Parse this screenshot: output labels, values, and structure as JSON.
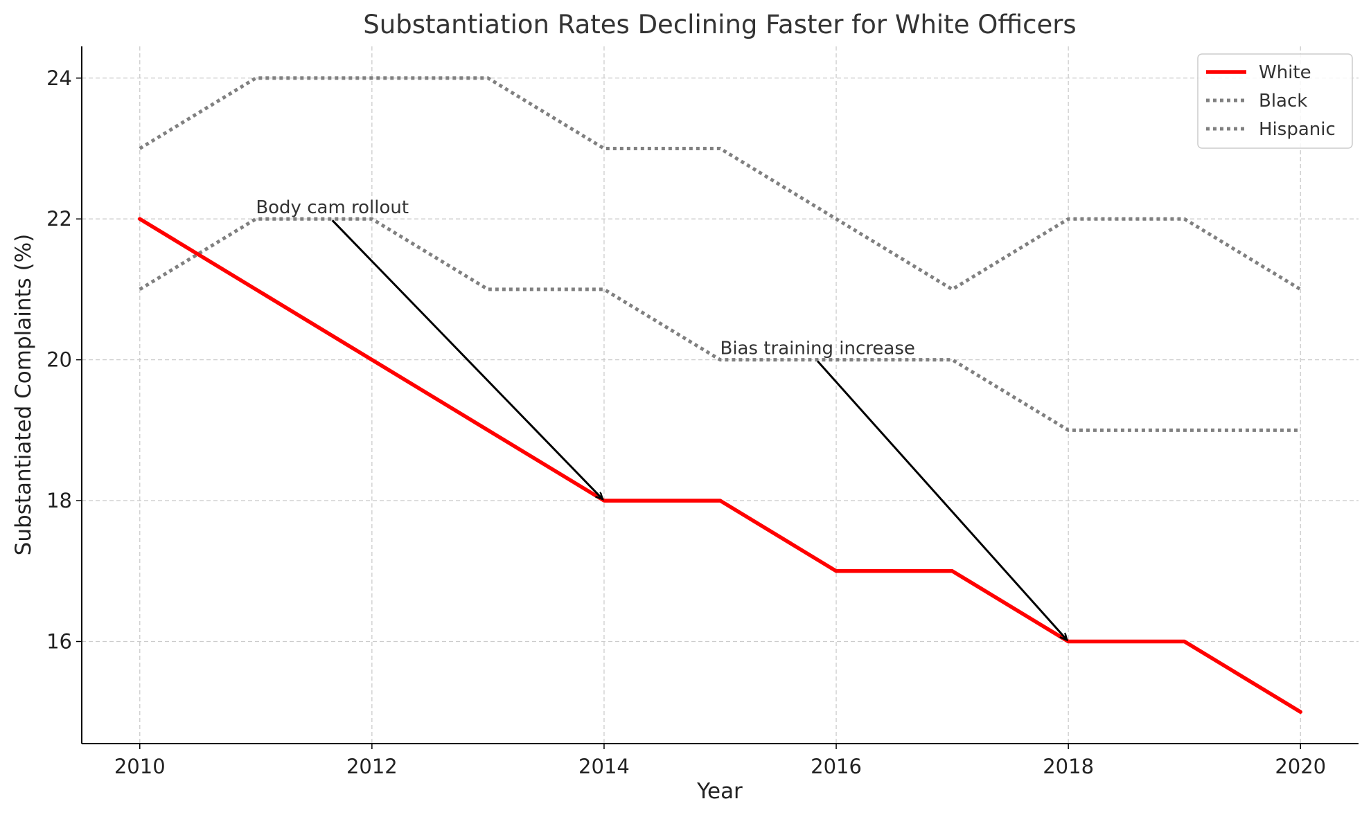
{
  "chart_data": {
    "type": "line",
    "title": "Substantiation Rates Declining Faster for White Officers",
    "xlabel": "Year",
    "ylabel": "Substantiated Complaints (%)",
    "x": [
      2010,
      2011,
      2012,
      2013,
      2014,
      2015,
      2016,
      2017,
      2018,
      2019,
      2020
    ],
    "xlim": [
      2009.5,
      2020.5
    ],
    "ylim": [
      14.55,
      24.45
    ],
    "xticks": [
      "2010",
      "2012",
      "2014",
      "2016",
      "2018",
      "2020"
    ],
    "yticks": [
      "16",
      "18",
      "20",
      "22",
      "24"
    ],
    "grid": true,
    "legend_position": "top-right",
    "series": [
      {
        "name": "White",
        "values": [
          22,
          21,
          20,
          19,
          18,
          18,
          17,
          17,
          16,
          16,
          15
        ],
        "color": "#ff0000",
        "style": "solid"
      },
      {
        "name": "Black",
        "values": [
          23,
          24,
          24,
          24,
          23,
          23,
          22,
          21,
          22,
          22,
          21
        ],
        "color": "#808080",
        "style": "dotted"
      },
      {
        "name": "Hispanic",
        "values": [
          21,
          22,
          22,
          21,
          21,
          20,
          20,
          20,
          19,
          19,
          19
        ],
        "color": "#808080",
        "style": "dotted"
      }
    ],
    "annotations": [
      {
        "text": "Body cam rollout",
        "target": {
          "x": 2014,
          "y": 18
        },
        "text_at": {
          "x": 2011,
          "y": 22
        }
      },
      {
        "text": "Bias training increase",
        "target": {
          "x": 2018,
          "y": 16
        },
        "text_at": {
          "x": 2015,
          "y": 20
        }
      }
    ]
  }
}
